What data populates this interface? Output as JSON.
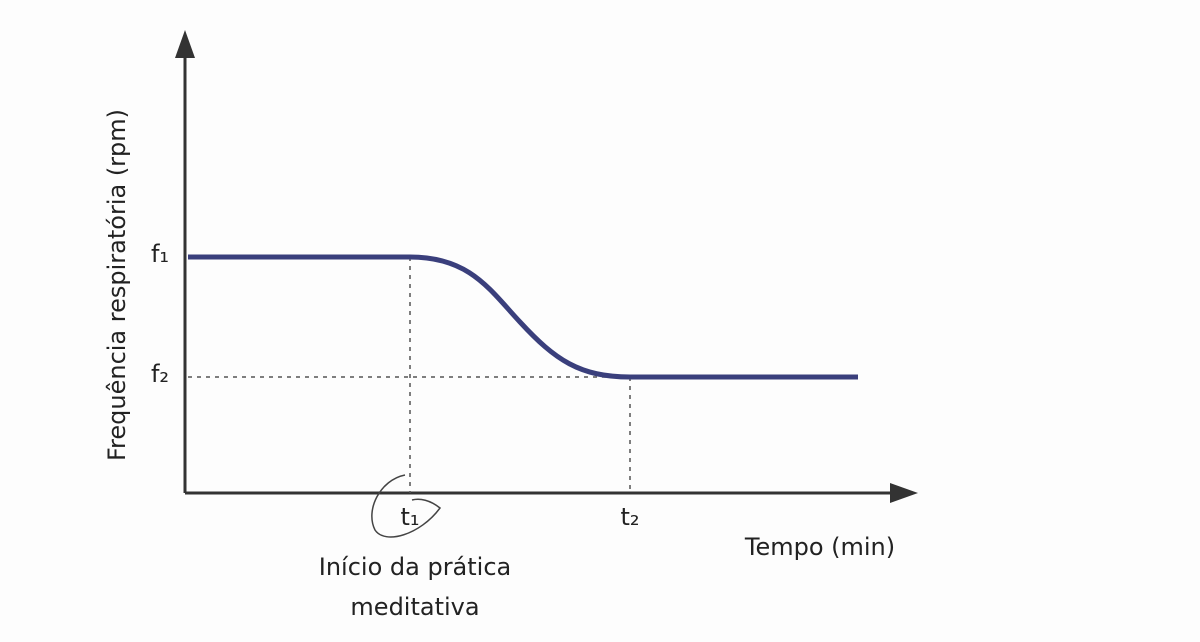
{
  "axes": {
    "y_label": "Frequência respiratória (rpm)",
    "x_label": "Tempo (min)"
  },
  "levels": [
    "f₁",
    "f₂"
  ],
  "times": [
    "t₁",
    "t₂"
  ],
  "annotation": [
    "Início da prática",
    "meditativa"
  ]
}
